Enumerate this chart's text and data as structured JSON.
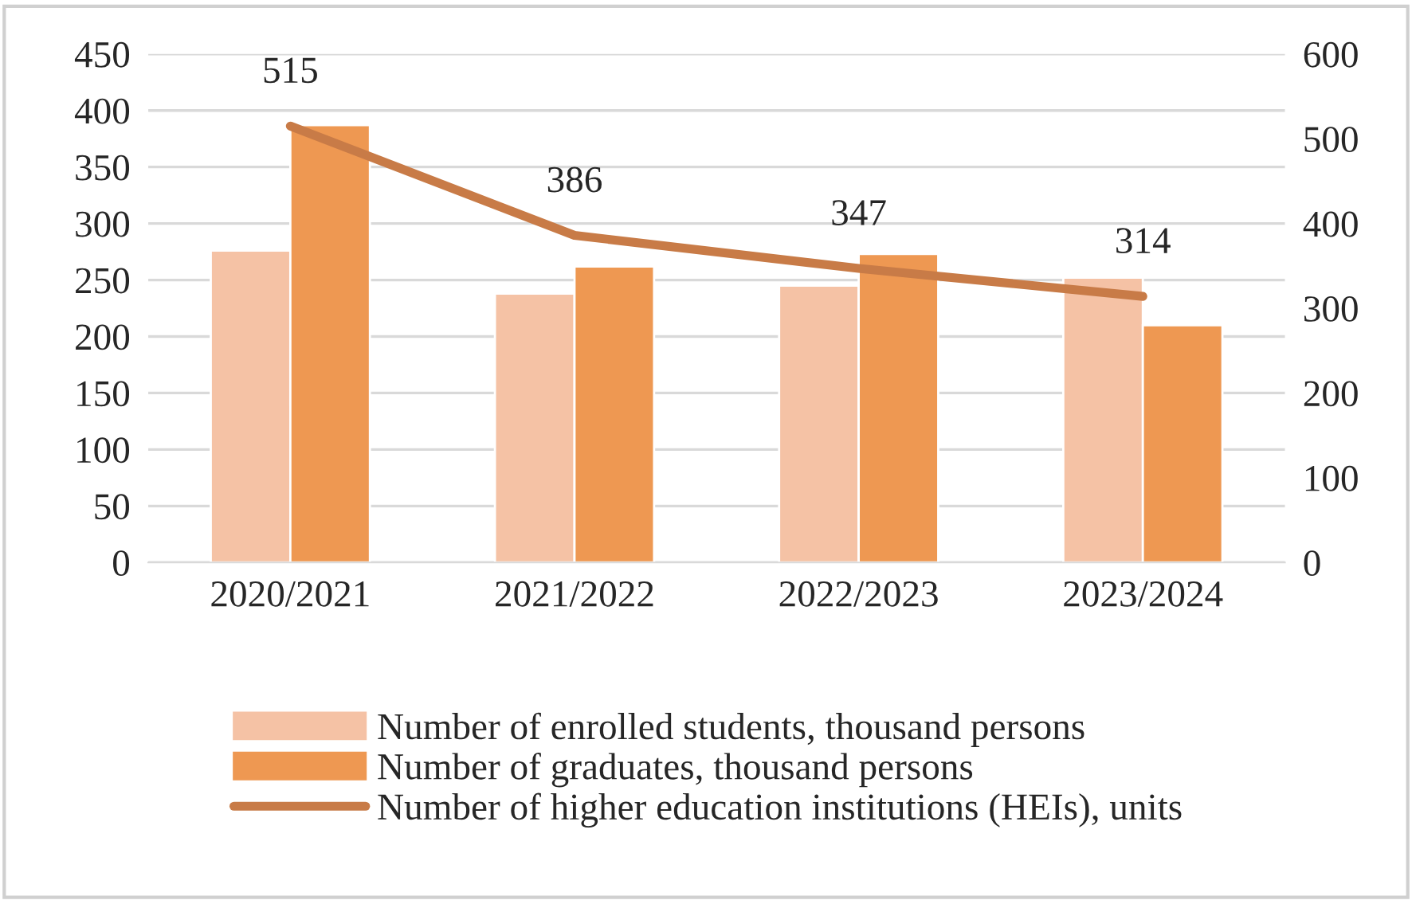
{
  "chart_data": {
    "type": "bar",
    "categories": [
      "2020/2021",
      "2021/2022",
      "2022/2023",
      "2023/2024"
    ],
    "series": [
      {
        "name": "Number of enrolled students, thousand persons",
        "color": "#f5c2a5",
        "values": [
          276,
          238,
          245,
          252
        ]
      },
      {
        "name": "Number of graduates, thousand persons",
        "color": "#ee9852",
        "values": [
          387,
          262,
          273,
          210
        ]
      },
      {
        "name": "Number of higher education institutions (HEIs), units",
        "type": "line",
        "axis": "y2",
        "color": "#c87b47",
        "values": [
          515,
          386,
          347,
          314
        ],
        "value_labels": [
          "515",
          "386",
          "347",
          "314"
        ]
      }
    ],
    "ylim": [
      0,
      450
    ],
    "yticks": [
      0,
      50,
      100,
      150,
      200,
      250,
      300,
      350,
      400,
      450
    ],
    "y2lim": [
      0,
      600
    ],
    "y2ticks": [
      0,
      100,
      200,
      300,
      400,
      500,
      600
    ],
    "grid": "y",
    "legend": "bottom"
  }
}
